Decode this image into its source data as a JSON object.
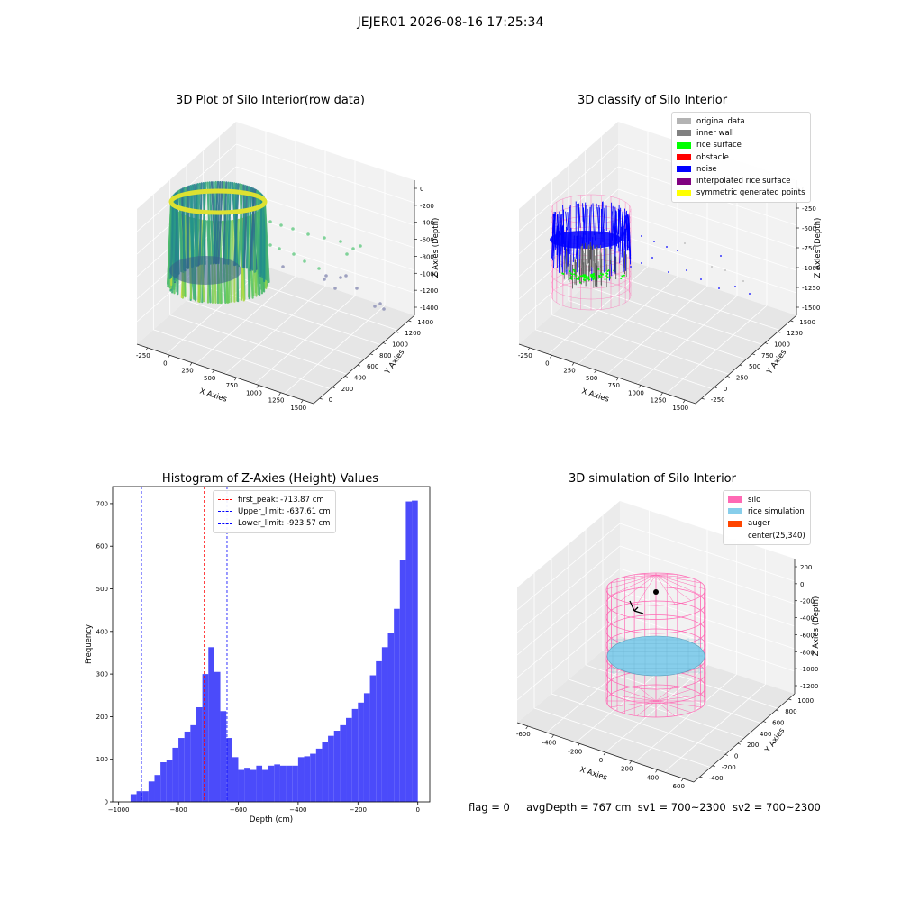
{
  "suptitle": "JEJER01 2026-08-16 17:25:34",
  "panels": {
    "raw": {
      "title": "3D Plot of Silo Interior(row data)",
      "xlabel": "X Axies",
      "ylabel": "Y Axies",
      "zlabel": "Z Axies (Depth)",
      "x_ticks": [
        "-250",
        "0",
        "250",
        "500",
        "750",
        "1000",
        "1250",
        "1500"
      ],
      "y_ticks": [
        "0",
        "200",
        "400",
        "600",
        "800",
        "1000",
        "1200",
        "1400"
      ],
      "z_ticks": [
        "0",
        "-200",
        "-400",
        "-600",
        "-800",
        "-1000",
        "-1200",
        "-1400"
      ]
    },
    "classify": {
      "title": "3D classify of Silo Interior",
      "xlabel": "X Axies",
      "ylabel": "Y Axies",
      "zlabel": "Z Axies (Depth)",
      "x_ticks": [
        "-250",
        "0",
        "250",
        "500",
        "750",
        "1000",
        "1250",
        "1500"
      ],
      "y_ticks": [
        "-250",
        "0",
        "250",
        "500",
        "750",
        "1000",
        "1250",
        "1500"
      ],
      "z_ticks": [
        "0",
        "-250",
        "-500",
        "-750",
        "-1000",
        "-1250",
        "-1500"
      ],
      "legend": [
        {
          "label": "original data",
          "color": "#b3b3b3"
        },
        {
          "label": "inner wall",
          "color": "#808080"
        },
        {
          "label": "rice surface",
          "color": "#00ff00"
        },
        {
          "label": "obstacle",
          "color": "#ff0000"
        },
        {
          "label": "noise",
          "color": "#0000ff"
        },
        {
          "label": "interpolated rice surface",
          "color": "#800080"
        },
        {
          "label": "symmetric generated points",
          "color": "#ffff00"
        }
      ]
    },
    "simulation": {
      "title": "3D simulation of Silo Interior",
      "xlabel": "X Axies",
      "ylabel": "Y Axies",
      "zlabel": "Z Axies (Depth)",
      "x_ticks": [
        "-600",
        "-400",
        "-200",
        "0",
        "200",
        "400",
        "600"
      ],
      "y_ticks": [
        "-400",
        "-200",
        "0",
        "200",
        "400",
        "600",
        "800",
        "1000"
      ],
      "z_ticks": [
        "200",
        "0",
        "-200",
        "-400",
        "-600",
        "-800",
        "-1000",
        "-1200"
      ],
      "legend": [
        {
          "label": "silo",
          "color": "#ff69b4"
        },
        {
          "label": "rice simulation",
          "color": "#87ceeb"
        },
        {
          "label": "auger",
          "color": "#ff4500"
        },
        {
          "label": "center(25,340)",
          "color": "#ffffff"
        }
      ]
    }
  },
  "chart_data": {
    "type": "bar",
    "title": "Histogram of Z-Axies (Height) Values",
    "xlabel": "Depth (cm)",
    "ylabel": "Frequency",
    "xlim": [
      -1020,
      40
    ],
    "ylim": [
      0,
      740
    ],
    "x_ticks": [
      -1000,
      -800,
      -600,
      -400,
      -200,
      0
    ],
    "y_ticks": [
      0,
      100,
      200,
      300,
      400,
      500,
      600,
      700
    ],
    "bar_color": "#4b4bfa",
    "bin_start": -960,
    "bin_width": 20,
    "values": [
      18,
      25,
      25,
      48,
      63,
      93,
      98,
      127,
      150,
      165,
      180,
      222,
      300,
      363,
      305,
      213,
      150,
      105,
      75,
      80,
      75,
      85,
      75,
      85,
      88,
      85,
      85,
      85,
      105,
      107,
      113,
      125,
      140,
      155,
      167,
      180,
      197,
      218,
      233,
      255,
      297,
      330,
      363,
      397,
      453,
      567,
      705,
      707
    ],
    "vlines": [
      {
        "x": -713.87,
        "color": "#ff0000",
        "label": "first_peak: -713.87 cm"
      },
      {
        "x": -637.61,
        "color": "#0000ff",
        "label": "Upper_limit: -637.61 cm"
      },
      {
        "x": -923.57,
        "color": "#0000ff",
        "label": "Lower_limit: -923.57 cm"
      }
    ],
    "legend_position": "top-center"
  },
  "footer": {
    "flag": "flag = 0",
    "avg_depth": "avgDepth = 767 cm",
    "sv1": "sv1 = 700~2300",
    "sv2": "sv2 = 700~2300"
  }
}
